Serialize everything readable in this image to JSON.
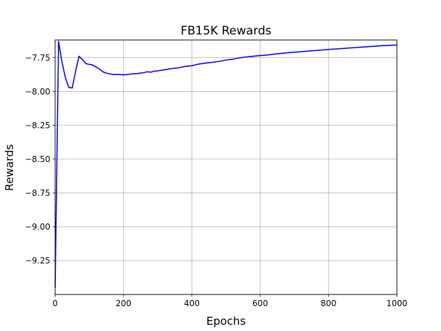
{
  "chart_data": {
    "type": "line",
    "title": "FB15K Rewards",
    "xlabel": "Epochs",
    "ylabel": "Rewards",
    "xlim": [
      0,
      1000
    ],
    "ylim": [
      -9.5,
      -7.62
    ],
    "grid": true,
    "xticks": [
      0,
      200,
      400,
      600,
      800,
      1000
    ],
    "xtick_labels": [
      "0",
      "200",
      "400",
      "600",
      "800",
      "1000"
    ],
    "yticks": [
      -9.25,
      -9.0,
      -8.75,
      -8.5,
      -8.25,
      -8.0,
      -7.75
    ],
    "ytick_labels": [
      "−9.25",
      "−9.00",
      "−8.75",
      "−8.50",
      "−8.25",
      "−8.00",
      "−7.75"
    ],
    "series": [
      {
        "name": "Rewards",
        "color": "#0000ff",
        "x": [
          0,
          10,
          20,
          30,
          40,
          50,
          60,
          70,
          80,
          90,
          100,
          110,
          120,
          130,
          140,
          150,
          160,
          170,
          180,
          190,
          200,
          210,
          220,
          230,
          240,
          250,
          260,
          270,
          280,
          290,
          300,
          320,
          340,
          360,
          380,
          400,
          420,
          440,
          460,
          480,
          500,
          520,
          540,
          560,
          580,
          600,
          620,
          640,
          660,
          680,
          700,
          720,
          740,
          760,
          780,
          800,
          820,
          840,
          860,
          880,
          900,
          920,
          940,
          960,
          980,
          1000
        ],
        "y": [
          -9.45,
          -7.63,
          -7.78,
          -7.9,
          -7.97,
          -7.975,
          -7.85,
          -7.74,
          -7.765,
          -7.795,
          -7.8,
          -7.805,
          -7.82,
          -7.835,
          -7.855,
          -7.865,
          -7.87,
          -7.875,
          -7.875,
          -7.875,
          -7.878,
          -7.875,
          -7.872,
          -7.87,
          -7.868,
          -7.865,
          -7.86,
          -7.855,
          -7.858,
          -7.85,
          -7.848,
          -7.84,
          -7.832,
          -7.826,
          -7.815,
          -7.81,
          -7.798,
          -7.79,
          -7.785,
          -7.778,
          -7.768,
          -7.762,
          -7.752,
          -7.745,
          -7.74,
          -7.735,
          -7.731,
          -7.725,
          -7.72,
          -7.715,
          -7.71,
          -7.706,
          -7.702,
          -7.698,
          -7.694,
          -7.69,
          -7.686,
          -7.683,
          -7.679,
          -7.676,
          -7.672,
          -7.669,
          -7.665,
          -7.662,
          -7.659,
          -7.657
        ]
      }
    ]
  }
}
